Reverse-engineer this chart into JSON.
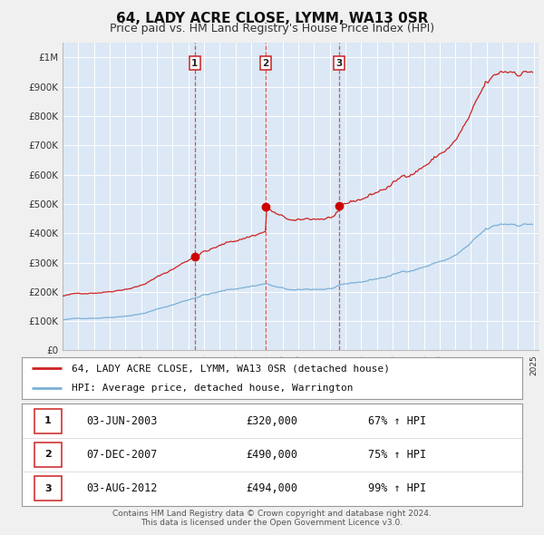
{
  "title": "64, LADY ACRE CLOSE, LYMM, WA13 0SR",
  "subtitle": "Price paid vs. HM Land Registry's House Price Index (HPI)",
  "title_fontsize": 11,
  "subtitle_fontsize": 9,
  "background_color": "#f0f0f0",
  "plot_bg_color": "#dce8f5",
  "hpi_line_color": "#7ab0d8",
  "property_line_color": "#cc2222",
  "property_dot_color": "#cc0000",
  "sale_dates": [
    2003.42,
    2007.93,
    2012.59
  ],
  "sale_prices": [
    320000,
    490000,
    494000
  ],
  "sale_labels": [
    "1",
    "2",
    "3"
  ],
  "legend_property": "64, LADY ACRE CLOSE, LYMM, WA13 0SR (detached house)",
  "legend_hpi": "HPI: Average price, detached house, Warrington",
  "table_data": [
    {
      "label": "1",
      "date": "03-JUN-2003",
      "price": "£320,000",
      "hpi": "67% ↑ HPI"
    },
    {
      "label": "2",
      "date": "07-DEC-2007",
      "price": "£490,000",
      "hpi": "75% ↑ HPI"
    },
    {
      "label": "3",
      "date": "03-AUG-2012",
      "price": "£494,000",
      "hpi": "99% ↑ HPI"
    }
  ],
  "footer1": "Contains HM Land Registry data © Crown copyright and database right 2024.",
  "footer2": "This data is licensed under the Open Government Licence v3.0.",
  "ylim": [
    0,
    1050000
  ],
  "yticks": [
    0,
    100000,
    200000,
    300000,
    400000,
    500000,
    600000,
    700000,
    800000,
    900000,
    1000000
  ],
  "ytick_labels": [
    "£0",
    "£100K",
    "£200K",
    "£300K",
    "£400K",
    "£500K",
    "£600K",
    "£700K",
    "£800K",
    "£900K",
    "£1M"
  ],
  "year_start": 1995,
  "year_end": 2025
}
